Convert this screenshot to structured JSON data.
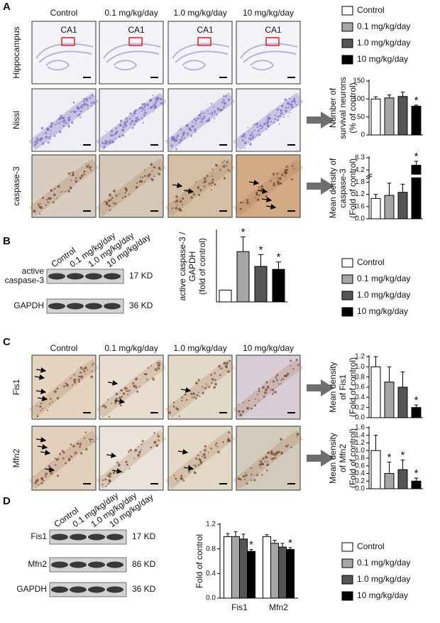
{
  "panels": {
    "A": {
      "letter": "A",
      "columns": [
        "Control",
        "0.1 mg/kg/day",
        "1.0 mg/kg/day",
        "10 mg/kg/day"
      ],
      "rows": [
        "Hippocampus",
        "Nissl",
        "caspase-3"
      ],
      "region_label": "CA1"
    },
    "B": {
      "letter": "B",
      "lanes": [
        "Control",
        "0.1 mg/kg/day",
        "1.0 mg/kg/day",
        "10 mg/kg/day"
      ],
      "blots": [
        {
          "label": [
            "active",
            "caspase-3"
          ],
          "size": "17 KD"
        },
        {
          "label": [
            "GAPDH"
          ],
          "size": "36 KD"
        }
      ]
    },
    "C": {
      "letter": "C",
      "columns": [
        "Control",
        "0.1 mg/kg/day",
        "1.0 mg/kg/day",
        "10 mg/kg/day"
      ],
      "rows": [
        "Fis1",
        "Mfn2"
      ]
    },
    "D": {
      "letter": "D",
      "lanes": [
        "Control",
        "0.1 mg/kg/day",
        "1.0 mg/kg/day",
        "10 mg/kg/day"
      ],
      "blots": [
        {
          "label": [
            "Fis1"
          ],
          "size": "17 KD"
        },
        {
          "label": [
            "Mfn2"
          ],
          "size": "86 KD"
        },
        {
          "label": [
            "GAPDH"
          ],
          "size": "36 KD"
        }
      ]
    }
  },
  "legends": [
    {
      "items": [
        {
          "label": "Control",
          "color": "#ffffff"
        },
        {
          "label": "0.1 mg/kg/day",
          "color": "#a6a6a6"
        },
        {
          "label": "1.0 mg/kg/day",
          "color": "#555555"
        },
        {
          "label": "10 mg/kg/day",
          "color": "#000000"
        }
      ]
    },
    {
      "items": [
        {
          "label": "Control",
          "color": "#ffffff"
        },
        {
          "label": "0.1 mg/kg/day",
          "color": "#a6a6a6"
        },
        {
          "label": "1.0 mg/kg/day",
          "color": "#555555"
        },
        {
          "label": "10 mg/kg/day",
          "color": "#000000"
        }
      ]
    }
  ],
  "chart_data": [
    {
      "type": "bar",
      "ylabel": [
        "Number of",
        "survival neurons",
        "(% of control)"
      ],
      "ylim": [
        0,
        150
      ],
      "yticks": [
        0,
        50,
        100,
        150
      ],
      "values": [
        100,
        103,
        107,
        80
      ],
      "errors": [
        6,
        8,
        12,
        3
      ],
      "colors": [
        "#ffffff",
        "#a6a6a6",
        "#555555",
        "#000000"
      ],
      "significance": [
        null,
        null,
        null,
        "*"
      ]
    },
    {
      "type": "bar",
      "ylabel": [
        "Mean density of",
        "caspase-3",
        "(Fold of control)"
      ],
      "broken_axis": true,
      "ylim": [
        0,
        6.3
      ],
      "yticks": [
        {
          "value": 0,
          "label": "0.0"
        },
        0.6,
        1.2,
        1.8,
        4.2,
        6.3
      ],
      "values": [
        1.0,
        1.15,
        1.3,
        5.0
      ],
      "errors": [
        0.2,
        0.6,
        0.4,
        0.7
      ],
      "colors": [
        "#ffffff",
        "#a6a6a6",
        "#555555",
        "#000000"
      ],
      "significance": [
        null,
        null,
        null,
        "*"
      ]
    },
    {
      "type": "bar",
      "ylabel": [
        "active caspase-3 /",
        "GAPDH",
        "(fold of control)"
      ],
      "ylim": [
        0.6,
        3.0
      ],
      "values": [
        1,
        2.3,
        1.8,
        1.7
      ],
      "errors": [
        null,
        0.5,
        0.4,
        0.25
      ],
      "colors": [
        "#ffffff",
        "#a6a6a6",
        "#555555",
        "#000000"
      ],
      "significance": [
        null,
        "*",
        "*",
        "*"
      ]
    },
    {
      "type": "bar",
      "ylabel": [
        "Mean density",
        "of Fis1",
        "(Fold of control)"
      ],
      "ylim": [
        0,
        1.2
      ],
      "yticks": [
        {
          "value": 0,
          "label": "0.0"
        },
        0.2,
        0.4,
        0.6,
        0.8,
        {
          "value": 1,
          "label": "1.0"
        },
        1.2
      ],
      "values": [
        1.0,
        0.7,
        0.6,
        0.2
      ],
      "errors": [
        0.2,
        0.3,
        0.3,
        0.05
      ],
      "colors": [
        "#ffffff",
        "#a6a6a6",
        "#555555",
        "#000000"
      ],
      "significance": [
        null,
        null,
        null,
        "*"
      ]
    },
    {
      "type": "bar",
      "ylabel": [
        "Mean density",
        "of Mfn2",
        "(Fold of control)"
      ],
      "ylim": [
        0,
        1.6
      ],
      "yticks": [
        {
          "value": 0,
          "label": "0.0"
        },
        0.2,
        0.4,
        0.6,
        0.8,
        {
          "value": 1,
          "label": "1.0"
        },
        1.2,
        1.4,
        1.6
      ],
      "values": [
        1.0,
        0.4,
        0.5,
        0.2
      ],
      "errors": [
        0.4,
        0.3,
        0.25,
        0.08
      ],
      "colors": [
        "#ffffff",
        "#a6a6a6",
        "#555555",
        "#000000"
      ],
      "significance": [
        null,
        "*",
        "*",
        "*"
      ]
    },
    {
      "type": "grouped_bar",
      "ylabel": [
        "Fold of control"
      ],
      "ylim": [
        0,
        1.2
      ],
      "yticks": [
        {
          "value": 0,
          "label": "0.0"
        },
        0.4,
        0.8,
        1.2
      ],
      "categories": [
        "Fis1",
        "Mfn2"
      ],
      "series": [
        {
          "name": "Control",
          "color": "#ffffff",
          "values": [
            1.0,
            1.0
          ],
          "errors": [
            0.05,
            0.03
          ],
          "significance": [
            null,
            null
          ]
        },
        {
          "name": "0.1 mg/kg/day",
          "color": "#a6a6a6",
          "values": [
            1.0,
            0.89
          ],
          "errors": [
            0.08,
            0.05
          ],
          "significance": [
            null,
            null
          ]
        },
        {
          "name": "1.0 mg/kg/day",
          "color": "#555555",
          "values": [
            0.96,
            0.83
          ],
          "errors": [
            0.08,
            0.06
          ],
          "significance": [
            null,
            null
          ]
        },
        {
          "name": "10 mg/kg/day",
          "color": "#000000",
          "values": [
            0.76,
            0.79
          ],
          "errors": [
            0.03,
            0.03
          ],
          "significance": [
            "*",
            "*"
          ]
        }
      ]
    }
  ]
}
